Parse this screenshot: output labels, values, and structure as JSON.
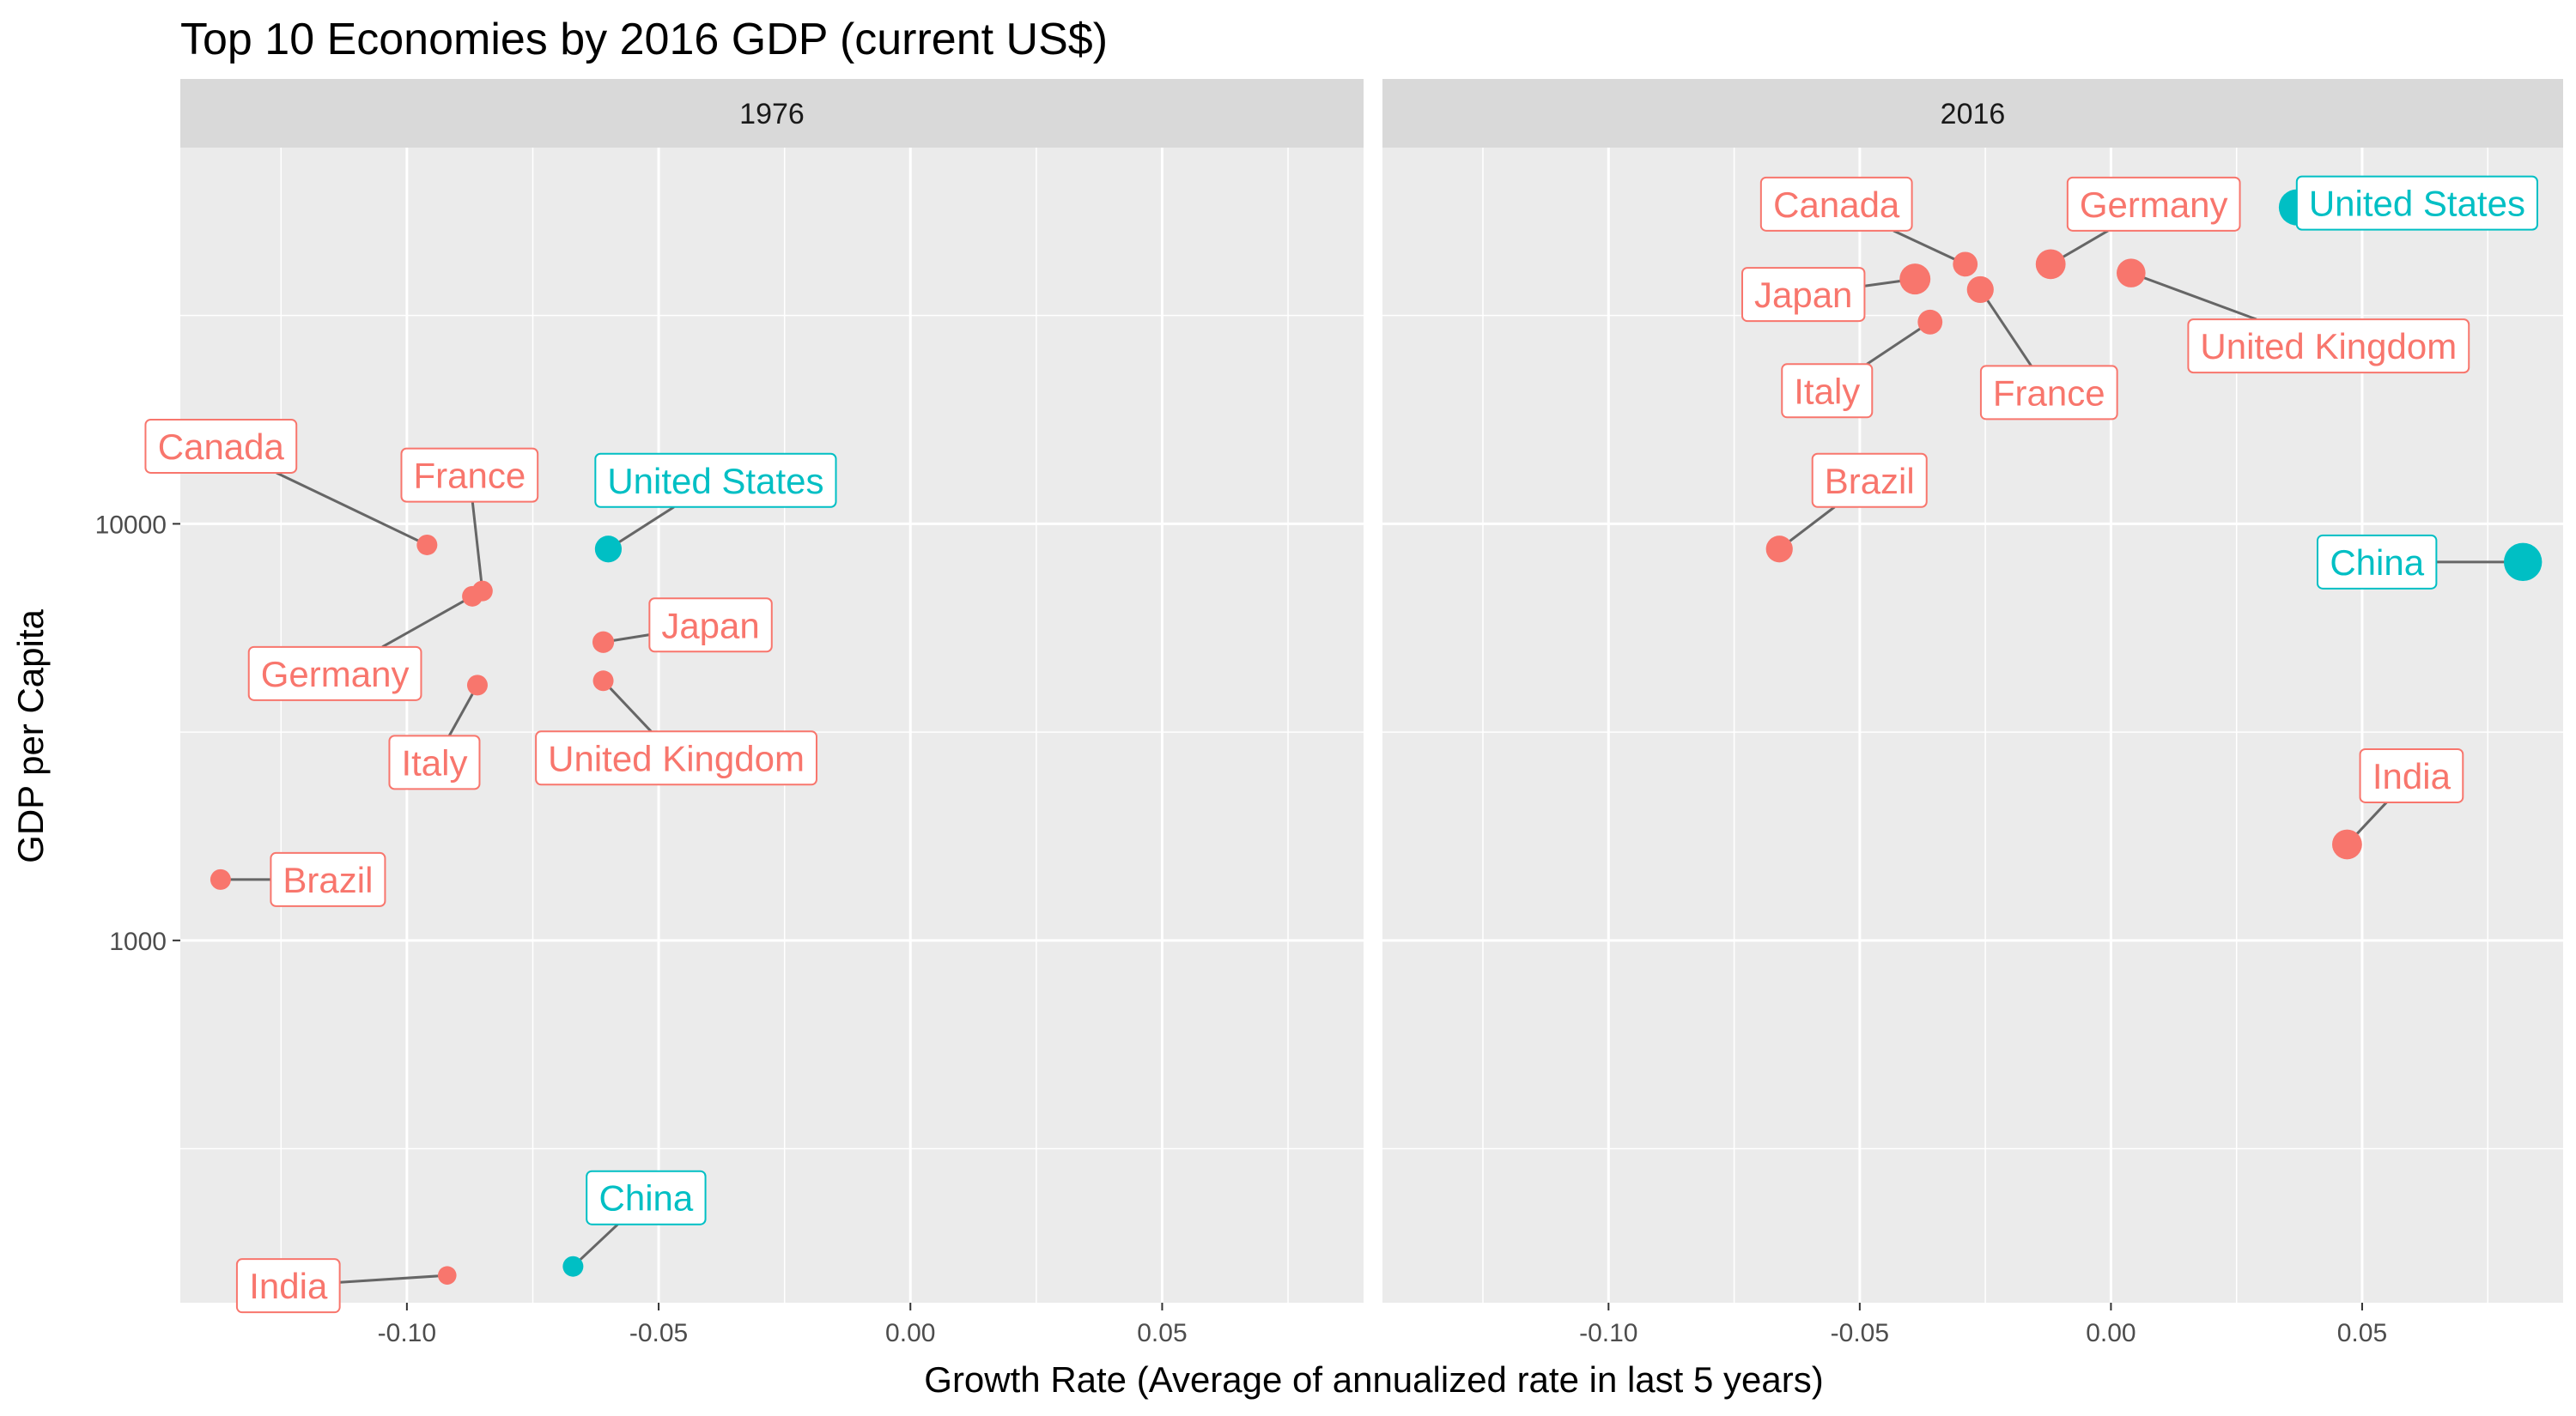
{
  "chart_data": {
    "type": "scatter",
    "title": "Top 10 Economies by 2016 GDP (current US$)",
    "xlabel": "Growth Rate (Average of annualized rate in last 5 years)",
    "ylabel": "GDP per Capita",
    "x_scale": "linear",
    "y_scale": "log10",
    "xlim": [
      -0.145,
      0.09
    ],
    "ylim": [
      135,
      80000
    ],
    "x_ticks": [
      -0.1,
      -0.05,
      0.0,
      0.05
    ],
    "x_tick_labels": [
      "-0.10",
      "-0.05",
      "0.00",
      "0.05"
    ],
    "y_ticks": [
      1000,
      10000
    ],
    "y_tick_labels": [
      "1000",
      "10000"
    ],
    "grid": true,
    "legend": "none",
    "colors": {
      "red_group": "#F8766D",
      "teal_group": "#00BFC4",
      "panel_bg": "#EBEBEB",
      "strip_bg": "#D9D9D9",
      "grid": "#FFFFFF"
    },
    "facets": [
      {
        "name": "1976",
        "points": [
          {
            "label": "Canada",
            "x": -0.096,
            "y": 8900,
            "group": "red",
            "size": 1
          },
          {
            "label": "France",
            "x": -0.085,
            "y": 6900,
            "group": "red",
            "size": 1
          },
          {
            "label": "Germany",
            "x": -0.087,
            "y": 6700,
            "group": "red",
            "size": 1
          },
          {
            "label": "United States",
            "x": -0.06,
            "y": 8700,
            "group": "teal",
            "size": 1.3
          },
          {
            "label": "Japan",
            "x": -0.061,
            "y": 5200,
            "group": "red",
            "size": 1.05
          },
          {
            "label": "Italy",
            "x": -0.086,
            "y": 4100,
            "group": "red",
            "size": 1
          },
          {
            "label": "United Kingdom",
            "x": -0.061,
            "y": 4200,
            "group": "red",
            "size": 1
          },
          {
            "label": "Brazil",
            "x": -0.137,
            "y": 1400,
            "group": "red",
            "size": 1
          },
          {
            "label": "China",
            "x": -0.067,
            "y": 165,
            "group": "teal",
            "size": 1
          },
          {
            "label": "India",
            "x": -0.092,
            "y": 157,
            "group": "red",
            "size": 0.9
          }
        ]
      },
      {
        "name": "2016",
        "points": [
          {
            "label": "Canada",
            "x": -0.029,
            "y": 42000,
            "group": "red",
            "size": 1.2
          },
          {
            "label": "Japan",
            "x": -0.039,
            "y": 38700,
            "group": "red",
            "size": 1.5
          },
          {
            "label": "France",
            "x": -0.026,
            "y": 36500,
            "group": "red",
            "size": 1.3
          },
          {
            "label": "Italy",
            "x": -0.036,
            "y": 30500,
            "group": "red",
            "size": 1.2
          },
          {
            "label": "Germany",
            "x": -0.012,
            "y": 42000,
            "group": "red",
            "size": 1.45
          },
          {
            "label": "United States",
            "x": 0.037,
            "y": 57500,
            "group": "teal",
            "size": 1.75
          },
          {
            "label": "United Kingdom",
            "x": 0.004,
            "y": 40000,
            "group": "red",
            "size": 1.4
          },
          {
            "label": "Brazil",
            "x": -0.066,
            "y": 8700,
            "group": "red",
            "size": 1.3
          },
          {
            "label": "China",
            "x": 0.082,
            "y": 8100,
            "group": "teal",
            "size": 1.85
          },
          {
            "label": "India",
            "x": 0.047,
            "y": 1700,
            "group": "red",
            "size": 1.45
          }
        ]
      }
    ]
  }
}
